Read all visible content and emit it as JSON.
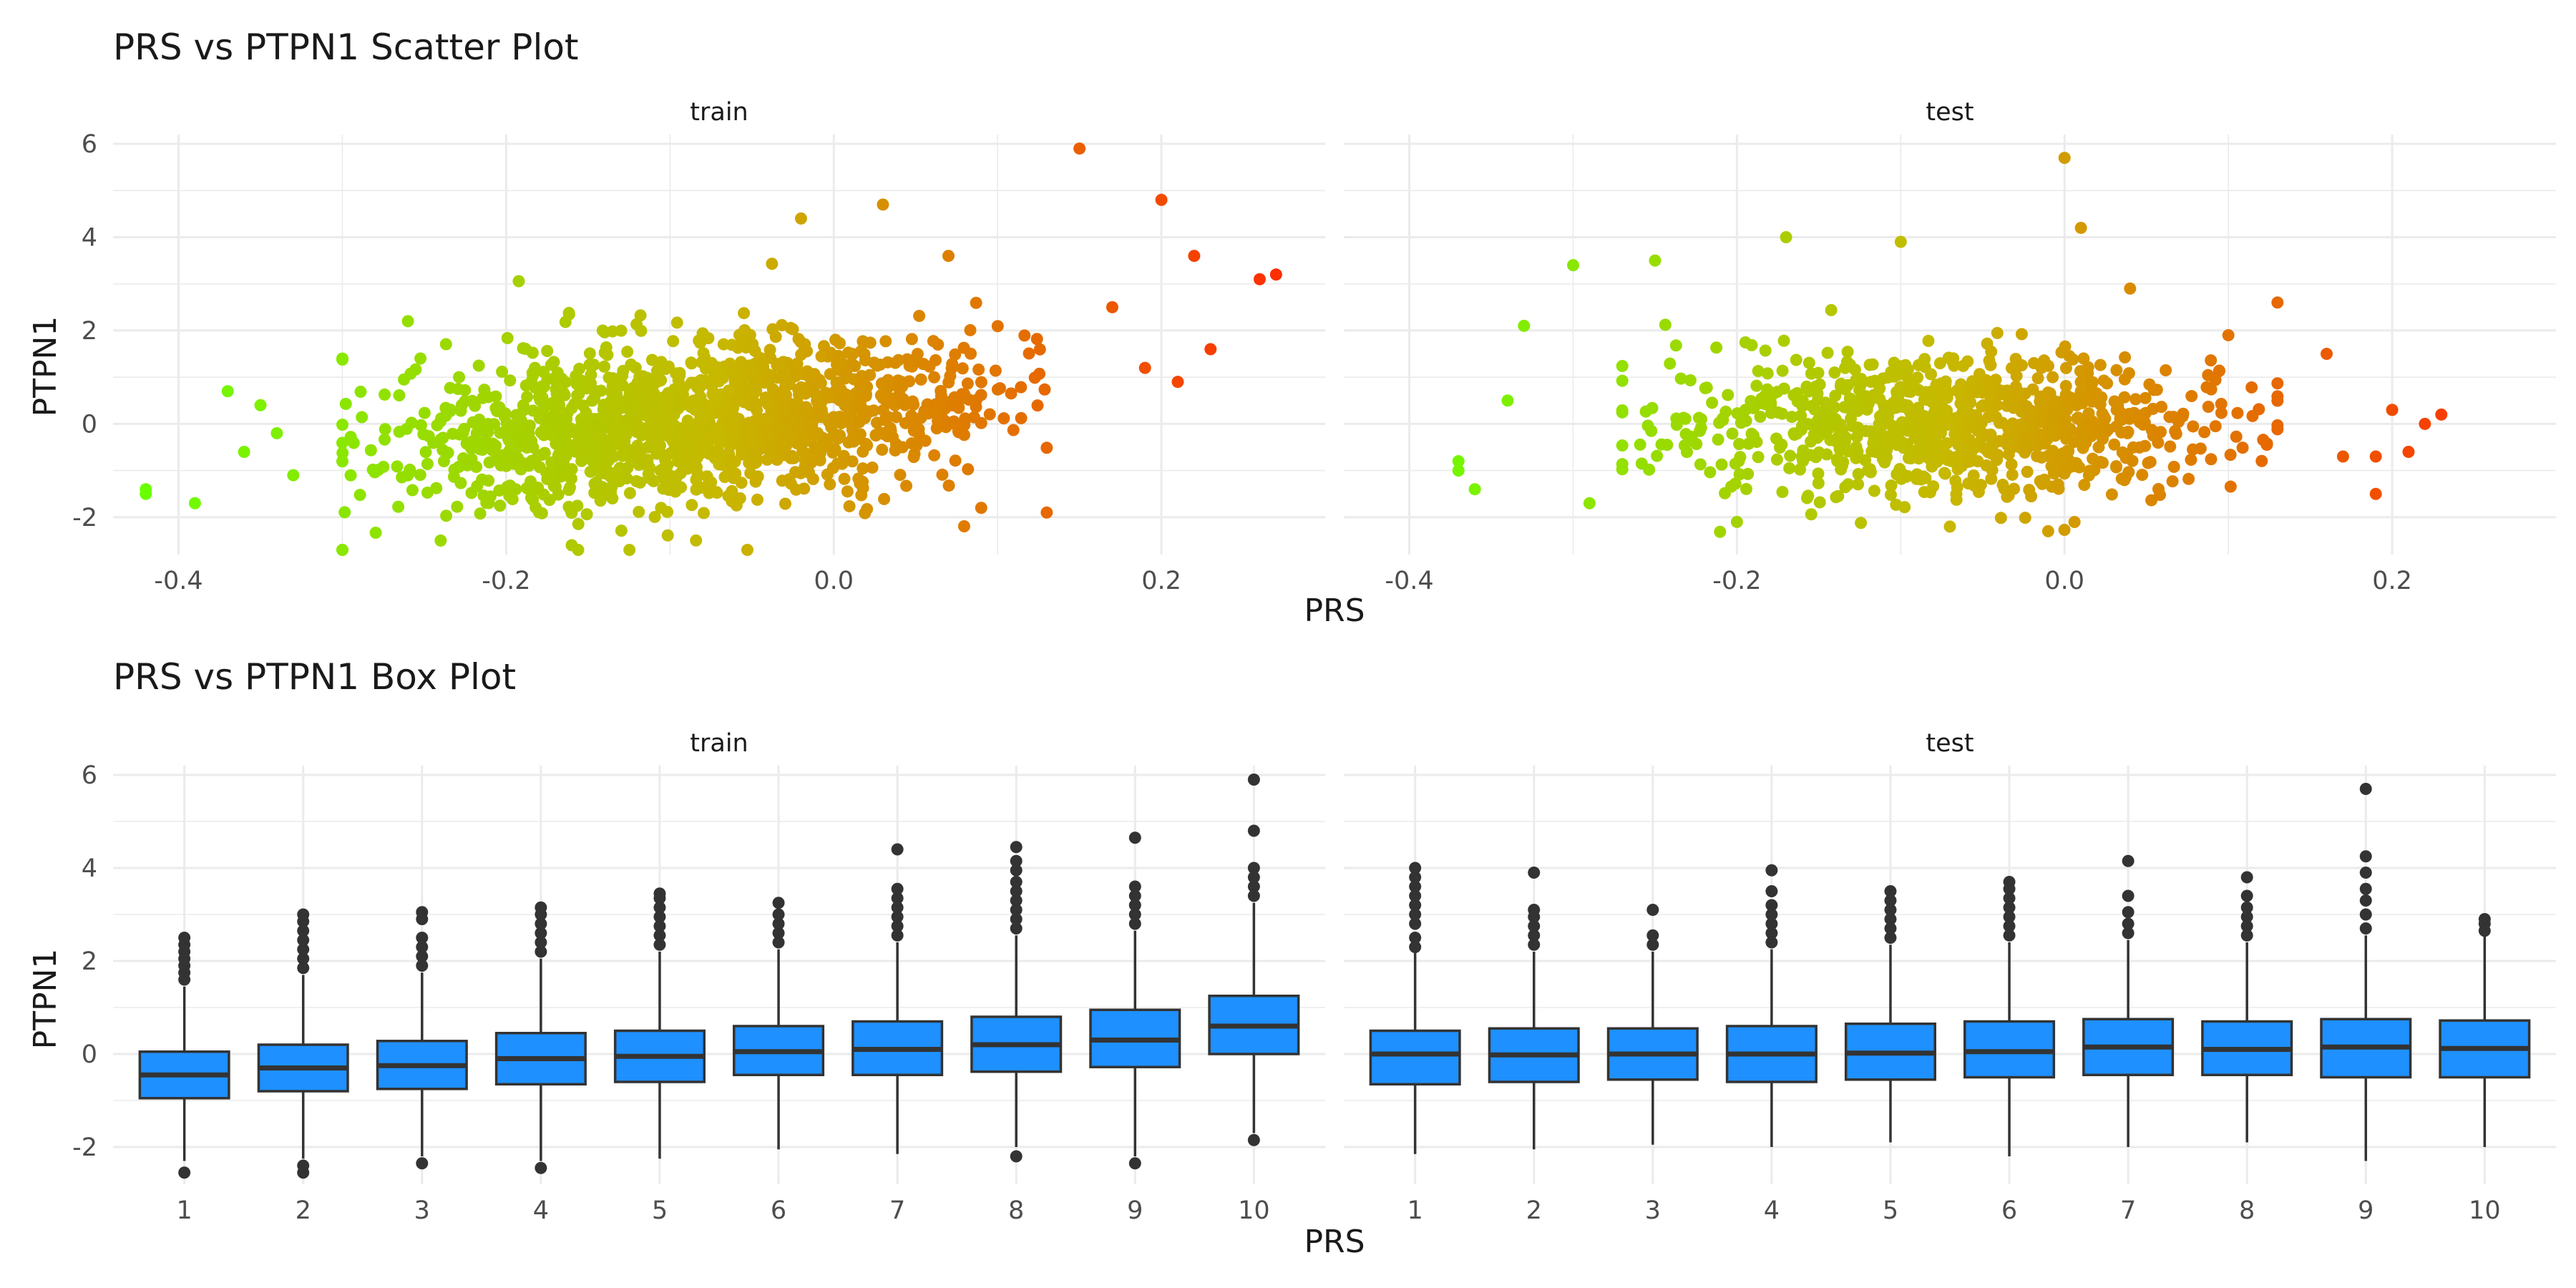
{
  "colors": {
    "low": "#6aff00",
    "mid": "#c7b800",
    "high": "#ff2a00",
    "box_fill": "#1e90ff",
    "box_line": "#333333",
    "grid": "#ebebeb"
  },
  "chart_data": [
    {
      "type": "scatter",
      "title": "PRS vs PTPN1 Scatter Plot",
      "xlabel": "PRS",
      "ylabel": "PTPN1",
      "grid": true,
      "legend": "none",
      "color_mapping": "gradient green to red by PRS",
      "panels": [
        {
          "name": "train",
          "xlim": [
            -0.44,
            0.3
          ],
          "ylim": [
            -2.8,
            6.2
          ],
          "xticks": [
            -0.4,
            -0.2,
            0.0,
            0.2
          ],
          "xtick_labels": [
            "-0.4",
            "-0.2",
            "0.0",
            "0.2"
          ],
          "yticks": [
            -2,
            0,
            2,
            4,
            6
          ],
          "ytick_labels": [
            "-2",
            "0",
            "2",
            "4",
            "6"
          ],
          "core": {
            "n": 1400,
            "x_range": [
              -0.3,
              0.13
            ],
            "y_center_at_x0": 0.3,
            "slope": 3.0,
            "y_sd": 0.85
          },
          "outliers": [
            [
              -0.42,
              -1.5
            ],
            [
              -0.42,
              -1.4
            ],
            [
              -0.39,
              -1.7
            ],
            [
              -0.37,
              0.7
            ],
            [
              -0.36,
              -0.6
            ],
            [
              -0.35,
              0.4
            ],
            [
              -0.34,
              -0.2
            ],
            [
              -0.33,
              -1.1
            ],
            [
              -0.3,
              1.4
            ],
            [
              -0.26,
              2.2
            ],
            [
              -0.24,
              -2.5
            ],
            [
              -0.16,
              -2.6
            ],
            [
              -0.02,
              4.4
            ],
            [
              0.03,
              4.7
            ],
            [
              0.07,
              3.6
            ],
            [
              0.09,
              -1.8
            ],
            [
              0.13,
              -1.9
            ],
            [
              0.15,
              5.9
            ],
            [
              0.17,
              2.5
            ],
            [
              0.19,
              1.2
            ],
            [
              0.2,
              4.8
            ],
            [
              0.21,
              0.9
            ],
            [
              0.22,
              3.6
            ],
            [
              0.23,
              1.6
            ],
            [
              0.26,
              3.1
            ],
            [
              0.27,
              3.2
            ]
          ]
        },
        {
          "name": "test",
          "xlim": [
            -0.44,
            0.3
          ],
          "ylim": [
            -2.8,
            6.2
          ],
          "xticks": [
            -0.4,
            -0.2,
            0.0,
            0.2
          ],
          "xtick_labels": [
            "-0.4",
            "-0.2",
            "0.0",
            "0.2"
          ],
          "yticks": [
            -2,
            0,
            2,
            4,
            6
          ],
          "ytick_labels": [
            "-2",
            "0",
            "2",
            "4",
            "6"
          ],
          "core": {
            "n": 900,
            "x_range": [
              -0.27,
              0.13
            ],
            "y_center_at_x0": 0.0,
            "slope": 0.0,
            "y_sd": 0.75
          },
          "outliers": [
            [
              -0.37,
              -0.8
            ],
            [
              -0.37,
              -1.0
            ],
            [
              -0.36,
              -1.4
            ],
            [
              -0.34,
              0.5
            ],
            [
              -0.33,
              2.1
            ],
            [
              -0.3,
              3.4
            ],
            [
              -0.29,
              -1.7
            ],
            [
              -0.25,
              3.5
            ],
            [
              -0.2,
              -2.1
            ],
            [
              -0.17,
              4.0
            ],
            [
              -0.1,
              3.9
            ],
            [
              -0.07,
              -2.2
            ],
            [
              -0.01,
              -2.3
            ],
            [
              0.0,
              5.7
            ],
            [
              0.01,
              4.2
            ],
            [
              0.04,
              2.9
            ],
            [
              0.1,
              1.9
            ],
            [
              0.13,
              2.6
            ],
            [
              0.16,
              1.5
            ],
            [
              0.17,
              -0.7
            ],
            [
              0.19,
              -0.7
            ],
            [
              0.2,
              0.3
            ],
            [
              0.21,
              -0.6
            ],
            [
              0.22,
              0.0
            ],
            [
              0.23,
              0.2
            ],
            [
              0.19,
              -1.5
            ]
          ]
        }
      ]
    },
    {
      "type": "box",
      "title": "PRS vs PTPN1 Box Plot",
      "xlabel": "PRS",
      "ylabel": "PTPN1",
      "grid": true,
      "legend": "none",
      "categories": [
        "1",
        "2",
        "3",
        "4",
        "5",
        "6",
        "7",
        "8",
        "9",
        "10"
      ],
      "panels": [
        {
          "name": "train",
          "ylim": [
            -2.8,
            6.2
          ],
          "yticks": [
            -2,
            0,
            2,
            4,
            6
          ],
          "ytick_labels": [
            "-2",
            "0",
            "2",
            "4",
            "6"
          ],
          "boxes": [
            {
              "q1": -0.95,
              "median": -0.45,
              "q3": 0.05,
              "wlow": -2.3,
              "whigh": 1.45,
              "outliers": [
                -2.55,
                1.6,
                1.75,
                1.9,
                2.05,
                2.2,
                2.35,
                2.5
              ]
            },
            {
              "q1": -0.8,
              "median": -0.3,
              "q3": 0.2,
              "wlow": -2.25,
              "whigh": 1.7,
              "outliers": [
                -2.4,
                -2.55,
                1.85,
                2.05,
                2.25,
                2.45,
                2.65,
                2.85,
                3.0
              ]
            },
            {
              "q1": -0.75,
              "median": -0.25,
              "q3": 0.28,
              "wlow": -2.2,
              "whigh": 1.75,
              "outliers": [
                -2.35,
                1.9,
                2.1,
                2.3,
                2.5,
                2.9,
                3.05
              ]
            },
            {
              "q1": -0.65,
              "median": -0.1,
              "q3": 0.45,
              "wlow": -2.3,
              "whigh": 2.05,
              "outliers": [
                -2.45,
                2.2,
                2.4,
                2.6,
                2.8,
                3.0,
                3.15
              ]
            },
            {
              "q1": -0.6,
              "median": -0.05,
              "q3": 0.5,
              "wlow": -2.25,
              "whigh": 2.2,
              "outliers": [
                2.35,
                2.55,
                2.75,
                2.95,
                3.15,
                3.35,
                3.45
              ]
            },
            {
              "q1": -0.45,
              "median": 0.05,
              "q3": 0.6,
              "wlow": -2.05,
              "whigh": 2.25,
              "outliers": [
                2.4,
                2.6,
                2.8,
                3.0,
                3.25
              ]
            },
            {
              "q1": -0.45,
              "median": 0.1,
              "q3": 0.7,
              "wlow": -2.15,
              "whigh": 2.4,
              "outliers": [
                2.55,
                2.75,
                2.95,
                3.15,
                3.35,
                3.55,
                4.4
              ]
            },
            {
              "q1": -0.38,
              "median": 0.2,
              "q3": 0.8,
              "wlow": -2.0,
              "whigh": 2.55,
              "outliers": [
                -2.2,
                2.7,
                2.9,
                3.1,
                3.3,
                3.5,
                3.7,
                3.95,
                4.15,
                4.45
              ]
            },
            {
              "q1": -0.28,
              "median": 0.3,
              "q3": 0.95,
              "wlow": -2.2,
              "whigh": 2.65,
              "outliers": [
                -2.35,
                2.8,
                3.0,
                3.2,
                3.4,
                3.6,
                4.65
              ]
            },
            {
              "q1": 0.0,
              "median": 0.6,
              "q3": 1.25,
              "wlow": -1.7,
              "whigh": 3.25,
              "outliers": [
                -1.85,
                3.4,
                3.6,
                3.8,
                4.0,
                4.8,
                5.9
              ]
            }
          ]
        },
        {
          "name": "test",
          "ylim": [
            -2.8,
            6.2
          ],
          "yticks": [
            -2,
            0,
            2,
            4,
            6
          ],
          "ytick_labels": [
            "-2",
            "0",
            "2",
            "4",
            "6"
          ],
          "boxes": [
            {
              "q1": -0.65,
              "median": 0.0,
              "q3": 0.5,
              "wlow": -2.15,
              "whigh": 2.2,
              "outliers": [
                2.3,
                2.5,
                2.8,
                3.0,
                3.2,
                3.4,
                3.6,
                3.8,
                4.0
              ]
            },
            {
              "q1": -0.6,
              "median": -0.02,
              "q3": 0.55,
              "wlow": -2.05,
              "whigh": 2.2,
              "outliers": [
                2.35,
                2.55,
                2.75,
                2.95,
                3.1,
                3.9
              ]
            },
            {
              "q1": -0.55,
              "median": 0.0,
              "q3": 0.55,
              "wlow": -1.95,
              "whigh": 2.2,
              "outliers": [
                2.35,
                2.55,
                3.1
              ]
            },
            {
              "q1": -0.6,
              "median": 0.0,
              "q3": 0.6,
              "wlow": -2.0,
              "whigh": 2.25,
              "outliers": [
                2.4,
                2.6,
                2.8,
                3.0,
                3.2,
                3.5,
                3.95
              ]
            },
            {
              "q1": -0.55,
              "median": 0.02,
              "q3": 0.65,
              "wlow": -1.9,
              "whigh": 2.35,
              "outliers": [
                2.5,
                2.7,
                2.9,
                3.1,
                3.3,
                3.5
              ]
            },
            {
              "q1": -0.5,
              "median": 0.05,
              "q3": 0.7,
              "wlow": -2.2,
              "whigh": 2.4,
              "outliers": [
                2.55,
                2.75,
                2.95,
                3.15,
                3.35,
                3.55,
                3.7
              ]
            },
            {
              "q1": -0.45,
              "median": 0.15,
              "q3": 0.75,
              "wlow": -2.0,
              "whigh": 2.45,
              "outliers": [
                2.6,
                2.8,
                3.05,
                3.4,
                4.15
              ]
            },
            {
              "q1": -0.45,
              "median": 0.1,
              "q3": 0.7,
              "wlow": -1.9,
              "whigh": 2.4,
              "outliers": [
                2.55,
                2.75,
                2.95,
                3.15,
                3.4,
                3.8
              ]
            },
            {
              "q1": -0.5,
              "median": 0.15,
              "q3": 0.75,
              "wlow": -2.3,
              "whigh": 2.55,
              "outliers": [
                2.7,
                3.0,
                3.3,
                3.55,
                3.9,
                4.25,
                5.7
              ]
            },
            {
              "q1": -0.5,
              "median": 0.12,
              "q3": 0.72,
              "wlow": -2.0,
              "whigh": 2.55,
              "outliers": [
                2.65,
                2.8,
                2.9
              ]
            }
          ]
        }
      ]
    }
  ]
}
